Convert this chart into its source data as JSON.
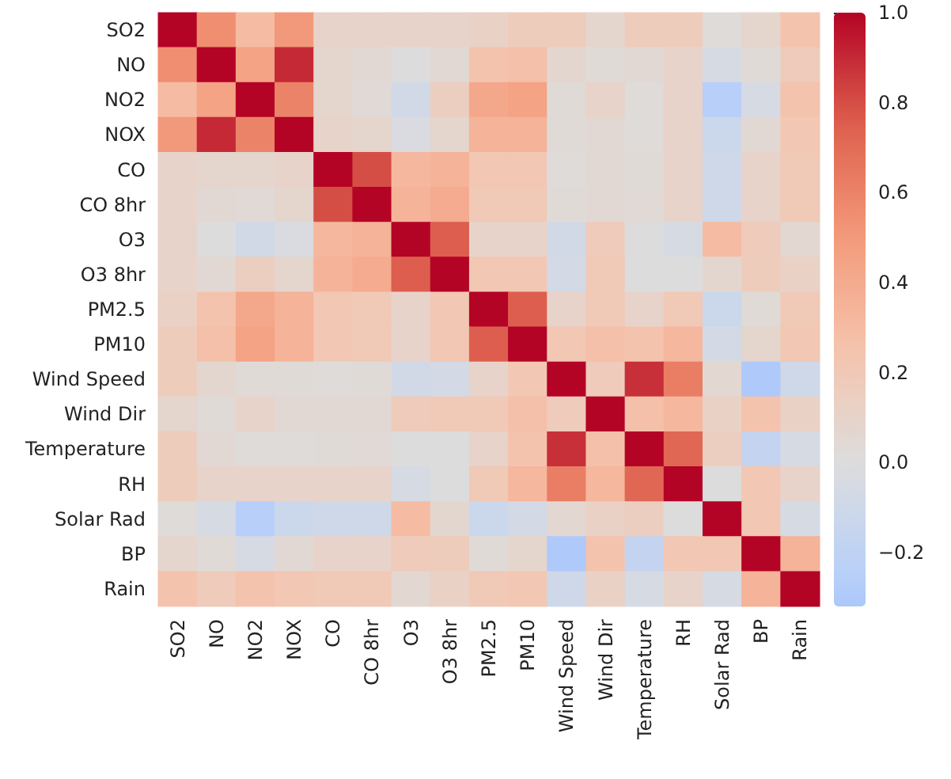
{
  "chart_data": {
    "type": "heatmap",
    "categories": [
      "SO2",
      "NO",
      "NO2",
      "NOX",
      "CO",
      "CO 8hr",
      "O3",
      "O3 8hr",
      "PM2.5",
      "PM10",
      "Wind Speed",
      "Wind Dir",
      "Temperature",
      "RH",
      "Solar Rad",
      "BP",
      "Rain"
    ],
    "y_categories": [
      "SO2",
      "NO",
      "NO2",
      "NOX",
      "CO",
      "CO 8hr",
      "O3",
      "O3 8hr",
      "PM2.5",
      "PM10",
      "Wind Speed",
      "Wind Dir",
      "Temperature",
      "RH",
      "Solar Rad",
      "BP",
      "Rain"
    ],
    "cells": [
      [
        1,
        0.55,
        0.3,
        0.5,
        0.1,
        0.1,
        0.1,
        0.1,
        0.12,
        0.17,
        0.17,
        0.08,
        0.17,
        0.17,
        0.02,
        0.08,
        0.25
      ],
      [
        0.55,
        1,
        0.45,
        0.9,
        0.08,
        0.05,
        0,
        0.05,
        0.25,
        0.27,
        0.07,
        0.03,
        0.05,
        0.1,
        -0.05,
        0.03,
        0.18
      ],
      [
        0.3,
        0.45,
        1,
        0.6,
        0.08,
        0.04,
        -0.08,
        0.15,
        0.42,
        0.45,
        0.03,
        0.1,
        0.02,
        0.1,
        -0.25,
        -0.05,
        0.25
      ],
      [
        0.5,
        0.9,
        0.6,
        1,
        0.1,
        0.08,
        -0.03,
        0.08,
        0.35,
        0.35,
        0.03,
        0.05,
        0.02,
        0.1,
        -0.12,
        0.05,
        0.22
      ],
      [
        0.1,
        0.08,
        0.08,
        0.1,
        1,
        0.8,
        0.32,
        0.35,
        0.22,
        0.22,
        0.02,
        0.05,
        0.03,
        0.1,
        -0.1,
        0.1,
        0.2
      ],
      [
        0.1,
        0.05,
        0.04,
        0.08,
        0.8,
        1,
        0.35,
        0.4,
        0.2,
        0.2,
        0.03,
        0.05,
        0.04,
        0.1,
        -0.1,
        0.1,
        0.2
      ],
      [
        0.1,
        0,
        -0.08,
        -0.03,
        0.32,
        0.35,
        1,
        0.75,
        0.1,
        0.1,
        -0.08,
        0.18,
        0,
        -0.05,
        0.3,
        0.18,
        0.06
      ],
      [
        0.1,
        0.05,
        0.15,
        0.08,
        0.35,
        0.4,
        0.75,
        1,
        0.22,
        0.22,
        -0.07,
        0.2,
        0,
        0,
        0.07,
        0.17,
        0.12
      ],
      [
        0.12,
        0.25,
        0.42,
        0.35,
        0.22,
        0.2,
        0.1,
        0.22,
        1,
        0.75,
        0.1,
        0.2,
        0.1,
        0.2,
        -0.12,
        0.03,
        0.2
      ],
      [
        0.17,
        0.27,
        0.45,
        0.35,
        0.22,
        0.2,
        0.1,
        0.22,
        0.75,
        1,
        0.22,
        0.27,
        0.25,
        0.33,
        -0.07,
        0.08,
        0.22
      ],
      [
        0.17,
        0.07,
        0.03,
        0.03,
        0.02,
        0.03,
        -0.08,
        -0.07,
        0.1,
        0.22,
        1,
        0.18,
        0.88,
        0.62,
        0.06,
        -0.3,
        -0.1
      ],
      [
        0.08,
        0.03,
        0.1,
        0.05,
        0.05,
        0.05,
        0.18,
        0.2,
        0.2,
        0.27,
        0.18,
        1,
        0.27,
        0.33,
        0.12,
        0.25,
        0.12
      ],
      [
        0.17,
        0.05,
        0.02,
        0.02,
        0.03,
        0.04,
        0,
        0,
        0.1,
        0.25,
        0.88,
        0.27,
        1,
        0.72,
        0.15,
        -0.17,
        -0.05
      ],
      [
        0.17,
        0.1,
        0.1,
        0.1,
        0.1,
        0.1,
        -0.05,
        0,
        0.2,
        0.33,
        0.62,
        0.33,
        0.72,
        1,
        0,
        0.22,
        0.1
      ],
      [
        0.02,
        -0.05,
        -0.25,
        -0.12,
        -0.1,
        -0.1,
        0.3,
        0.07,
        -0.12,
        -0.07,
        0.06,
        0.12,
        0.15,
        0,
        1,
        0.22,
        -0.05
      ],
      [
        0.08,
        0.03,
        -0.05,
        0.05,
        0.1,
        0.1,
        0.18,
        0.17,
        0.03,
        0.08,
        -0.3,
        0.25,
        -0.17,
        0.22,
        0.22,
        1,
        0.35
      ],
      [
        0.25,
        0.18,
        0.25,
        0.22,
        0.2,
        0.2,
        0.06,
        0.12,
        0.2,
        0.22,
        -0.1,
        0.12,
        -0.05,
        0.1,
        -0.05,
        0.35,
        1
      ]
    ],
    "clim": [
      -0.32,
      1
    ],
    "cticks": [
      {
        "value": -0.2,
        "label": "−0.2"
      },
      {
        "value": 0,
        "label": "0.0"
      },
      {
        "value": 0.2,
        "label": "0.2"
      },
      {
        "value": 0.4,
        "label": "0.4"
      },
      {
        "value": 0.6,
        "label": "0.6"
      },
      {
        "value": 0.8,
        "label": "0.8"
      },
      {
        "value": 1,
        "label": "1.0"
      }
    ]
  }
}
